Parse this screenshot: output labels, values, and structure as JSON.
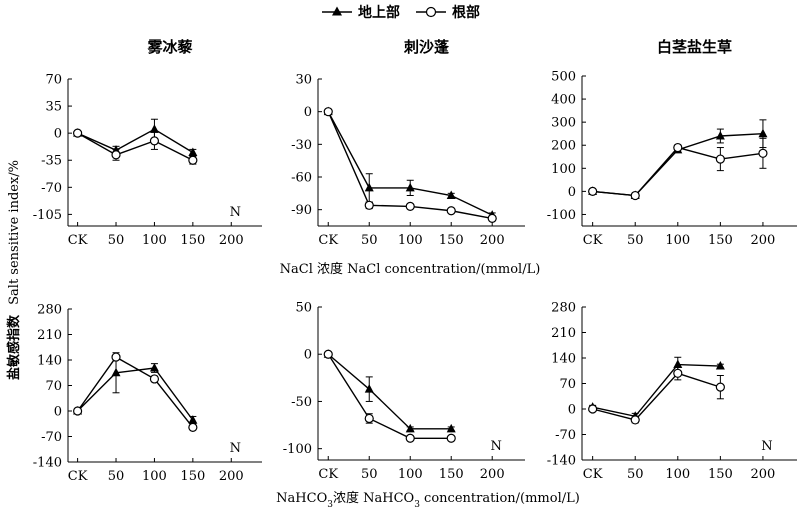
{
  "figure": {
    "legend": {
      "aboveground": "地上部",
      "root": "根部"
    },
    "ylabel_cn": "盐敏感指数",
    "ylabel_en": "Salt sensitive index/%",
    "xlabel_row1": "NaCl 浓度 NaCl concentration/(mmol/L)",
    "xlabel_row2_pre": "NaHCO",
    "xlabel_row2_sub": "3",
    "xlabel_row2_mid": "浓度 NaHCO",
    "xlabel_row2_tail": " concentration/(mmol/L)",
    "n_marker": "N"
  },
  "chart_data": [
    {
      "type": "line",
      "title": "雾冰藜",
      "treatment": "NaCl",
      "categories": [
        "CK",
        "50",
        "100",
        "150",
        "200"
      ],
      "yticks": [
        -105,
        -70,
        -35,
        0,
        35,
        70
      ],
      "ylim": [
        -120,
        70
      ],
      "n_label": true,
      "series": [
        {
          "name": "地上部",
          "marker": "triangle",
          "values": [
            0,
            -22,
            5,
            -25,
            null
          ],
          "errors": [
            1,
            5,
            13,
            4,
            0
          ]
        },
        {
          "name": "根部",
          "marker": "circle",
          "values": [
            0,
            -28,
            -10,
            -35,
            null
          ],
          "errors": [
            1,
            7,
            11,
            5,
            0
          ]
        }
      ]
    },
    {
      "type": "line",
      "title": "刺沙蓬",
      "treatment": "NaCl",
      "categories": [
        "CK",
        "50",
        "100",
        "150",
        "200"
      ],
      "yticks": [
        -90,
        -60,
        -30,
        0,
        30
      ],
      "ylim": [
        -105,
        30
      ],
      "n_label": false,
      "series": [
        {
          "name": "地上部",
          "marker": "triangle",
          "values": [
            0,
            -70,
            -70,
            -77,
            -95
          ],
          "errors": [
            1,
            13,
            7,
            2,
            2
          ]
        },
        {
          "name": "根部",
          "marker": "circle",
          "values": [
            0,
            -86,
            -87,
            -91,
            -98
          ],
          "errors": [
            1,
            3,
            1,
            1,
            2
          ]
        }
      ]
    },
    {
      "type": "line",
      "title": "白茎盐生草",
      "treatment": "NaCl",
      "categories": [
        "CK",
        "50",
        "100",
        "150",
        "200"
      ],
      "yticks": [
        -100,
        0,
        100,
        200,
        300,
        400,
        500
      ],
      "ylim": [
        -150,
        500
      ],
      "n_label": false,
      "series": [
        {
          "name": "地上部",
          "marker": "triangle",
          "values": [
            0,
            -18,
            180,
            240,
            250
          ],
          "errors": [
            5,
            5,
            10,
            30,
            60
          ]
        },
        {
          "name": "根部",
          "marker": "circle",
          "values": [
            0,
            -18,
            190,
            140,
            165
          ],
          "errors": [
            5,
            5,
            10,
            50,
            65
          ]
        }
      ]
    },
    {
      "type": "line",
      "title": "",
      "treatment": "NaHCO3",
      "categories": [
        "CK",
        "50",
        "100",
        "150",
        "200"
      ],
      "yticks": [
        -140,
        -70,
        0,
        70,
        140,
        210,
        280
      ],
      "ylim": [
        -140,
        280
      ],
      "n_label": true,
      "series": [
        {
          "name": "地上部",
          "marker": "triangle",
          "values": [
            0,
            105,
            118,
            -25,
            null
          ],
          "errors": [
            2,
            55,
            12,
            10,
            0
          ]
        },
        {
          "name": "根部",
          "marker": "circle",
          "values": [
            0,
            148,
            88,
            -45,
            null
          ],
          "errors": [
            2,
            5,
            8,
            5,
            0
          ]
        }
      ]
    },
    {
      "type": "line",
      "title": "",
      "treatment": "NaHCO3",
      "categories": [
        "CK",
        "50",
        "100",
        "150",
        "200"
      ],
      "yticks": [
        -100,
        -50,
        0,
        50
      ],
      "ylim": [
        -112,
        50
      ],
      "n_label": true,
      "series": [
        {
          "name": "地上部",
          "marker": "triangle",
          "values": [
            0,
            -37,
            -79,
            -79,
            null
          ],
          "errors": [
            1,
            13,
            2,
            2,
            0
          ]
        },
        {
          "name": "根部",
          "marker": "circle",
          "values": [
            0,
            -68,
            -89,
            -89,
            null
          ],
          "errors": [
            1,
            5,
            2,
            1,
            0
          ]
        }
      ]
    },
    {
      "type": "line",
      "title": "",
      "treatment": "NaHCO3",
      "categories": [
        "CK",
        "50",
        "100",
        "150",
        "200"
      ],
      "yticks": [
        -140,
        -70,
        0,
        70,
        140,
        210,
        280
      ],
      "ylim": [
        -140,
        280
      ],
      "n_label": true,
      "series": [
        {
          "name": "地上部",
          "marker": "triangle",
          "values": [
            5,
            -20,
            122,
            118,
            null
          ],
          "errors": [
            5,
            8,
            20,
            5,
            0
          ]
        },
        {
          "name": "根部",
          "marker": "circle",
          "values": [
            0,
            -30,
            98,
            60,
            null
          ],
          "errors": [
            5,
            8,
            18,
            32,
            0
          ]
        }
      ]
    }
  ]
}
